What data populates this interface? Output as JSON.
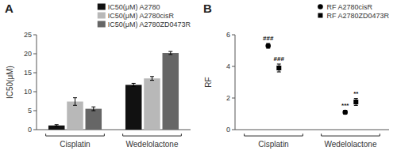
{
  "chart_data": [
    {
      "type": "bar",
      "title": "A",
      "y_label": "IC50(μM)",
      "categories": [
        "Cisplatin",
        "Wedelolactone"
      ],
      "series": [
        {
          "name": "IC50(μM) A2780",
          "color": "#111111",
          "values": [
            1.1,
            11.8
          ],
          "errors": [
            0.2,
            0.4
          ]
        },
        {
          "name": "IC50(μM) A2780cisR",
          "color": "#b8b8b8",
          "values": [
            7.4,
            13.5
          ],
          "errors": [
            1.0,
            0.5
          ]
        },
        {
          "name": "IC50(μM) A2780ZD0473R",
          "color": "#666666",
          "values": [
            5.5,
            20.2
          ],
          "errors": [
            0.5,
            0.4
          ]
        }
      ],
      "ylim": [
        0,
        25
      ],
      "yticks": [
        0,
        5,
        10,
        15,
        20,
        25
      ],
      "grid": false,
      "legend": "upper right",
      "tick_labels": "y"
    },
    {
      "type": "scatter",
      "title": "B",
      "y_label": "RF",
      "categories": [
        "Cisplatin",
        "Wedelolactone"
      ],
      "series": [
        {
          "name": "RF A2780cisR",
          "color": "#000000",
          "marker": "circle",
          "values": [
            5.3,
            1.1
          ],
          "errors": [
            0.15,
            0.12
          ]
        },
        {
          "name": "RF A2780ZD0473R",
          "color": "#000000",
          "marker": "square",
          "values": [
            3.9,
            1.75
          ],
          "errors": [
            0.25,
            0.22
          ]
        }
      ],
      "ylim": [
        0,
        6
      ],
      "yticks": [
        0,
        2,
        4,
        6
      ],
      "annotations": [
        {
          "text": "###",
          "series": 0,
          "category": 0
        },
        {
          "text": "###",
          "series": 1,
          "category": 0
        },
        {
          "text": "***",
          "series": 0,
          "category": 1
        },
        {
          "text": "**",
          "series": 1,
          "category": 1
        }
      ],
      "grid": false,
      "legend": "upper right",
      "tick_labels": "y"
    }
  ]
}
